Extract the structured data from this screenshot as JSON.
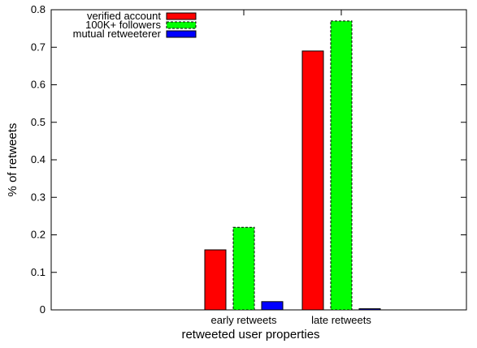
{
  "chart_data": {
    "type": "bar",
    "title": "",
    "xlabel": "retweeted user properties",
    "ylabel": "% of retweets",
    "categories": [
      "early retweets",
      "late retweets"
    ],
    "ylim": [
      0,
      0.8
    ],
    "yticks": [
      0,
      0.1,
      0.2,
      0.3,
      0.4,
      0.5,
      0.6,
      0.7,
      0.8
    ],
    "ytick_labels": [
      "0",
      "0.1",
      "0.2",
      "0.3",
      "0.4",
      "0.5",
      "0.6",
      "0.7",
      "0.8"
    ],
    "grid": false,
    "legend_position": "top-left",
    "series": [
      {
        "name": "verified account",
        "values": [
          0.16,
          0.69
        ],
        "color": "#ff0000",
        "dashed": false
      },
      {
        "name": "100K+ followers",
        "values": [
          0.22,
          0.77
        ],
        "color": "#00ff00",
        "dashed": true
      },
      {
        "name": "mutual retweeterer",
        "values": [
          0.022,
          0.003
        ],
        "color": "#0000ff",
        "dashed": false
      }
    ]
  }
}
